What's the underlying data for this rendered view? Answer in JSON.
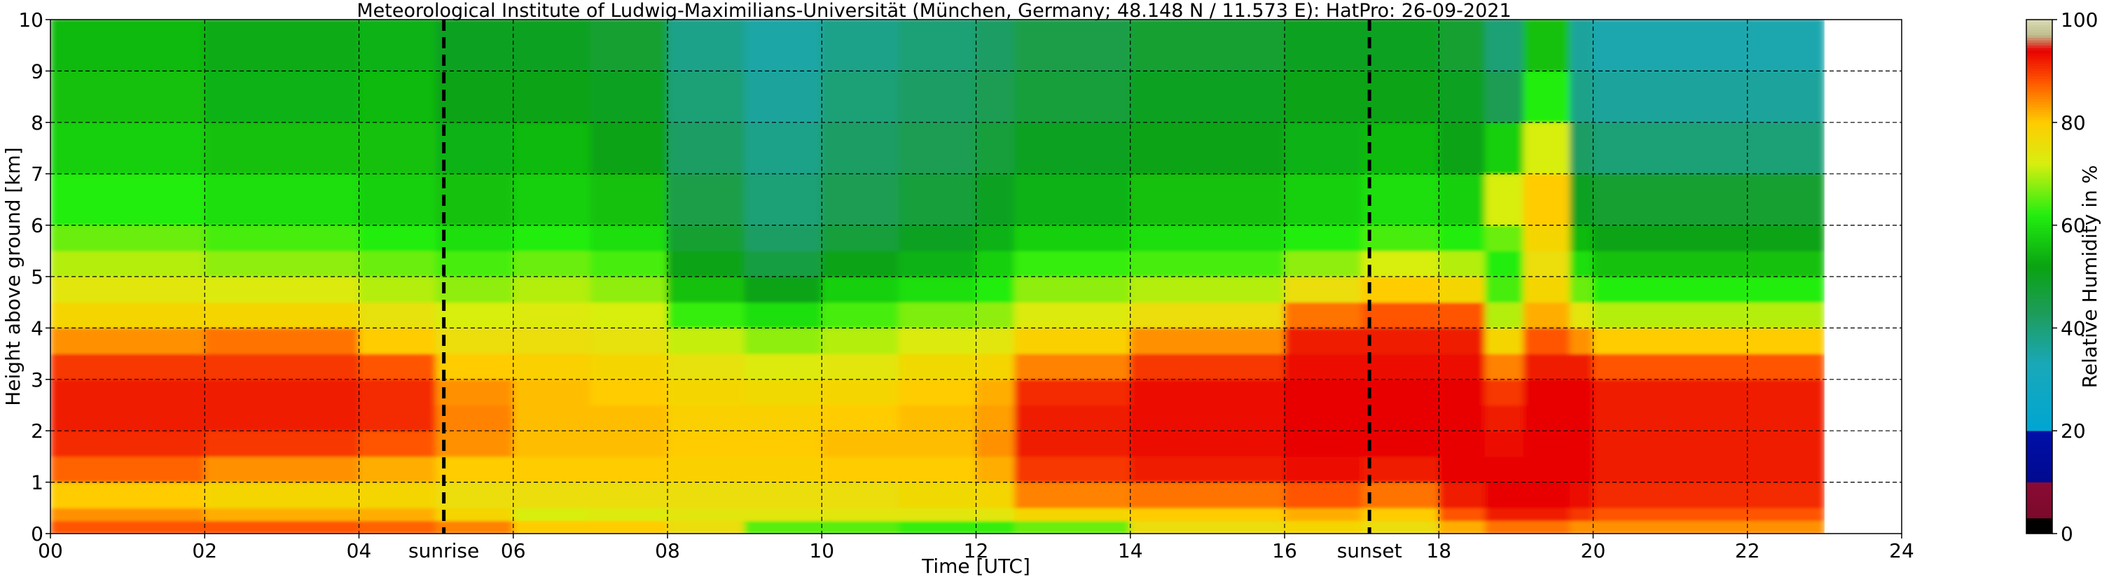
{
  "chart_data": {
    "type": "heatmap",
    "title": "Meteorological Institute of Ludwig-Maximilians-Universität (München, Germany; 48.148 N / 11.573 E):    HatPro: 26-09-2021",
    "xlabel": "Time [UTC]",
    "ylabel": "Height above ground [km]",
    "colorbar_label": "Relative Humidity in %",
    "xlim": [
      0,
      24
    ],
    "ylim": [
      0,
      10
    ],
    "data_end_time": 23,
    "x_ticks": [
      0,
      2,
      4,
      6,
      8,
      10,
      12,
      14,
      16,
      18,
      20,
      22,
      24
    ],
    "x_tick_labels": [
      "00",
      "02",
      "04",
      "06",
      "08",
      "10",
      "12",
      "14",
      "16",
      "18",
      "20",
      "22",
      "24"
    ],
    "y_ticks": [
      0,
      1,
      2,
      3,
      4,
      5,
      6,
      7,
      8,
      9,
      10
    ],
    "y_tick_labels": [
      "0",
      "1",
      "2",
      "3",
      "4",
      "5",
      "6",
      "7",
      "8",
      "9",
      "10"
    ],
    "grid": true,
    "colorbar_ticks": [
      0,
      20,
      40,
      60,
      80,
      100
    ],
    "colorbar_tick_labels": [
      "0",
      "20",
      "40",
      "60",
      "80",
      "100"
    ],
    "colorbar_stops": [
      {
        "value": 0,
        "color": "#000000"
      },
      {
        "value": 3,
        "color": "#000000"
      },
      {
        "value": 3,
        "color": "#7a0a2a"
      },
      {
        "value": 10,
        "color": "#8b0a35"
      },
      {
        "value": 10,
        "color": "#000a8f"
      },
      {
        "value": 20,
        "color": "#0010a8"
      },
      {
        "value": 20,
        "color": "#00a6d2"
      },
      {
        "value": 33,
        "color": "#19a8b8"
      },
      {
        "value": 43,
        "color": "#1e9c5a"
      },
      {
        "value": 52,
        "color": "#0aa312"
      },
      {
        "value": 62,
        "color": "#22ee10"
      },
      {
        "value": 72,
        "color": "#d8ee10"
      },
      {
        "value": 80,
        "color": "#ffcc00"
      },
      {
        "value": 88,
        "color": "#ff5500"
      },
      {
        "value": 94,
        "color": "#e80000"
      },
      {
        "value": 97,
        "color": "#bfbf8f"
      },
      {
        "value": 100,
        "color": "#d9d9b5"
      }
    ],
    "vertical_markers": [
      {
        "label": "sunrise",
        "time": 5.1
      },
      {
        "label": "sunset",
        "time": 17.1
      }
    ],
    "height_levels": [
      0,
      0.25,
      0.5,
      1,
      1.5,
      2,
      2.5,
      3,
      3.5,
      4,
      4.5,
      5,
      5.5,
      6,
      7,
      8,
      9,
      10
    ],
    "series": [
      {
        "time": 0,
        "values": [
          88,
          84,
          80,
          87,
          91,
          92,
          92,
          90,
          84,
          78,
          74,
          70,
          66,
          62,
          58,
          56,
          55,
          55
        ]
      },
      {
        "time": 2,
        "values": [
          88,
          82,
          78,
          84,
          90,
          92,
          92,
          90,
          86,
          78,
          73,
          68,
          64,
          60,
          56,
          54,
          53,
          53
        ]
      },
      {
        "time": 4,
        "values": [
          87,
          82,
          78,
          82,
          88,
          91,
          91,
          88,
          80,
          75,
          70,
          66,
          62,
          58,
          56,
          55,
          54,
          53
        ]
      },
      {
        "time": 5,
        "values": [
          85,
          78,
          76,
          80,
          84,
          85,
          84,
          80,
          76,
          72,
          68,
          64,
          60,
          56,
          54,
          52,
          50,
          50
        ]
      },
      {
        "time": 6,
        "values": [
          80,
          72,
          76,
          80,
          81,
          81,
          81,
          79,
          76,
          73,
          70,
          66,
          62,
          58,
          55,
          52,
          50,
          50
        ]
      },
      {
        "time": 7,
        "values": [
          80,
          73,
          76,
          80,
          81,
          81,
          80,
          78,
          75,
          72,
          68,
          64,
          60,
          56,
          52,
          50,
          48,
          48
        ]
      },
      {
        "time": 8,
        "values": [
          76,
          74,
          76,
          79,
          80,
          79,
          78,
          75,
          71,
          63,
          56,
          52,
          48,
          45,
          42,
          40,
          38,
          38
        ]
      },
      {
        "time": 9,
        "values": [
          65,
          74,
          76,
          79,
          80,
          79,
          77,
          73,
          68,
          60,
          52,
          46,
          42,
          40,
          38,
          36,
          35,
          35
        ]
      },
      {
        "time": 10,
        "values": [
          65,
          74,
          76,
          80,
          81,
          80,
          78,
          74,
          70,
          64,
          58,
          52,
          47,
          44,
          42,
          40,
          38,
          38
        ]
      },
      {
        "time": 11,
        "values": [
          63,
          74,
          77,
          80,
          81,
          81,
          80,
          77,
          73,
          67,
          60,
          54,
          50,
          47,
          44,
          42,
          40,
          40
        ]
      },
      {
        "time": 12,
        "values": [
          63,
          74,
          78,
          82,
          84,
          83,
          82,
          78,
          74,
          68,
          62,
          58,
          54,
          50,
          47,
          44,
          42,
          42
        ]
      },
      {
        "time": 12.5,
        "values": [
          66,
          78,
          85,
          90,
          92,
          92,
          91,
          85,
          79,
          73,
          68,
          63,
          58,
          54,
          50,
          47,
          45,
          45
        ]
      },
      {
        "time": 14,
        "values": [
          76,
          80,
          86,
          92,
          93,
          93,
          93,
          90,
          84,
          76,
          70,
          64,
          60,
          56,
          52,
          50,
          48,
          48
        ]
      },
      {
        "time": 16,
        "values": [
          78,
          82,
          88,
          93,
          94,
          94,
          94,
          93,
          92,
          86,
          76,
          68,
          62,
          58,
          54,
          52,
          50,
          50
        ]
      },
      {
        "time": 17,
        "values": [
          76,
          80,
          86,
          92,
          94,
          94,
          94,
          93,
          92,
          88,
          80,
          72,
          64,
          60,
          55,
          52,
          50,
          50
        ]
      },
      {
        "time": 18,
        "values": [
          82,
          88,
          92,
          94,
          94,
          94,
          94,
          93,
          92,
          88,
          78,
          70,
          62,
          58,
          52,
          50,
          48,
          48
        ]
      },
      {
        "time": 18.6,
        "values": [
          86,
          92,
          94,
          94,
          93,
          92,
          90,
          85,
          78,
          70,
          64,
          62,
          66,
          72,
          58,
          44,
          40,
          40
        ]
      },
      {
        "time": 19.1,
        "values": [
          86,
          92,
          94,
          94,
          94,
          94,
          94,
          92,
          88,
          82,
          78,
          76,
          78,
          80,
          72,
          62,
          56,
          55
        ]
      },
      {
        "time": 19.7,
        "values": [
          84,
          90,
          93,
          94,
          94,
          94,
          94,
          92,
          84,
          74,
          66,
          60,
          55,
          50,
          42,
          38,
          36,
          35
        ]
      },
      {
        "time": 20,
        "values": [
          84,
          88,
          91,
          92,
          92,
          92,
          92,
          88,
          80,
          70,
          62,
          56,
          52,
          48,
          40,
          36,
          34,
          34
        ]
      },
      {
        "time": 23,
        "values": [
          84,
          88,
          91,
          92,
          92,
          92,
          92,
          88,
          80,
          70,
          62,
          56,
          52,
          48,
          40,
          36,
          34,
          34
        ]
      }
    ]
  }
}
